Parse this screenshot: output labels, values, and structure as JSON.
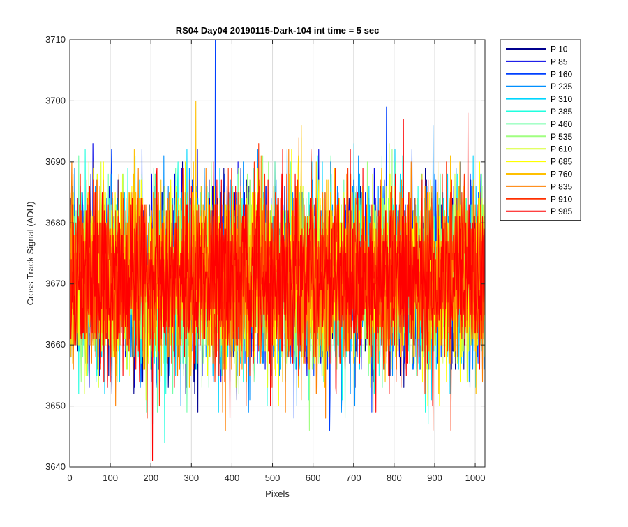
{
  "chart_data": {
    "type": "line",
    "title": "RS04 Day04 20190115-Dark-104 int time = 5 sec",
    "xlabel": "Pixels",
    "ylabel": "Cross Track Signal (ADU)",
    "xlim": [
      0,
      1024
    ],
    "ylim": [
      3640,
      3710
    ],
    "xticks": [
      0,
      100,
      200,
      300,
      400,
      500,
      600,
      700,
      800,
      900,
      1000
    ],
    "yticks": [
      3640,
      3650,
      3660,
      3670,
      3680,
      3690,
      3700,
      3710
    ],
    "grid": true,
    "legend_position": "outside-top-right",
    "pixel_count": 1024,
    "mean_signal": 3671,
    "signal_noise_std": 7,
    "series": [
      {
        "name": "P 10",
        "color": "#00008f"
      },
      {
        "name": "P 85",
        "color": "#0000e6"
      },
      {
        "name": "P 160",
        "color": "#0040ff"
      },
      {
        "name": "P 235",
        "color": "#0090ff"
      },
      {
        "name": "P 310",
        "color": "#00d6ff"
      },
      {
        "name": "P 385",
        "color": "#20ffdf"
      },
      {
        "name": "P 460",
        "color": "#70ffa8"
      },
      {
        "name": "P 535",
        "color": "#a0ff80"
      },
      {
        "name": "P 610",
        "color": "#d8ff30"
      },
      {
        "name": "P 685",
        "color": "#ffff00"
      },
      {
        "name": "P 760",
        "color": "#ffc000"
      },
      {
        "name": "P 835",
        "color": "#ff8000"
      },
      {
        "name": "P 910",
        "color": "#ff3000"
      },
      {
        "name": "P 985",
        "color": "#ff0000"
      }
    ],
    "highlights": [
      {
        "series": "P 160",
        "x": 358,
        "y": 3710
      },
      {
        "series": "P 760",
        "x": 310,
        "y": 3700
      },
      {
        "series": "P 985",
        "x": 203,
        "y": 3641
      },
      {
        "series": "P 385",
        "x": 233,
        "y": 3644
      },
      {
        "series": "P 535",
        "x": 590,
        "y": 3646
      },
      {
        "series": "P 160",
        "x": 640,
        "y": 3646
      },
      {
        "series": "P 985",
        "x": 822,
        "y": 3697
      }
    ]
  }
}
